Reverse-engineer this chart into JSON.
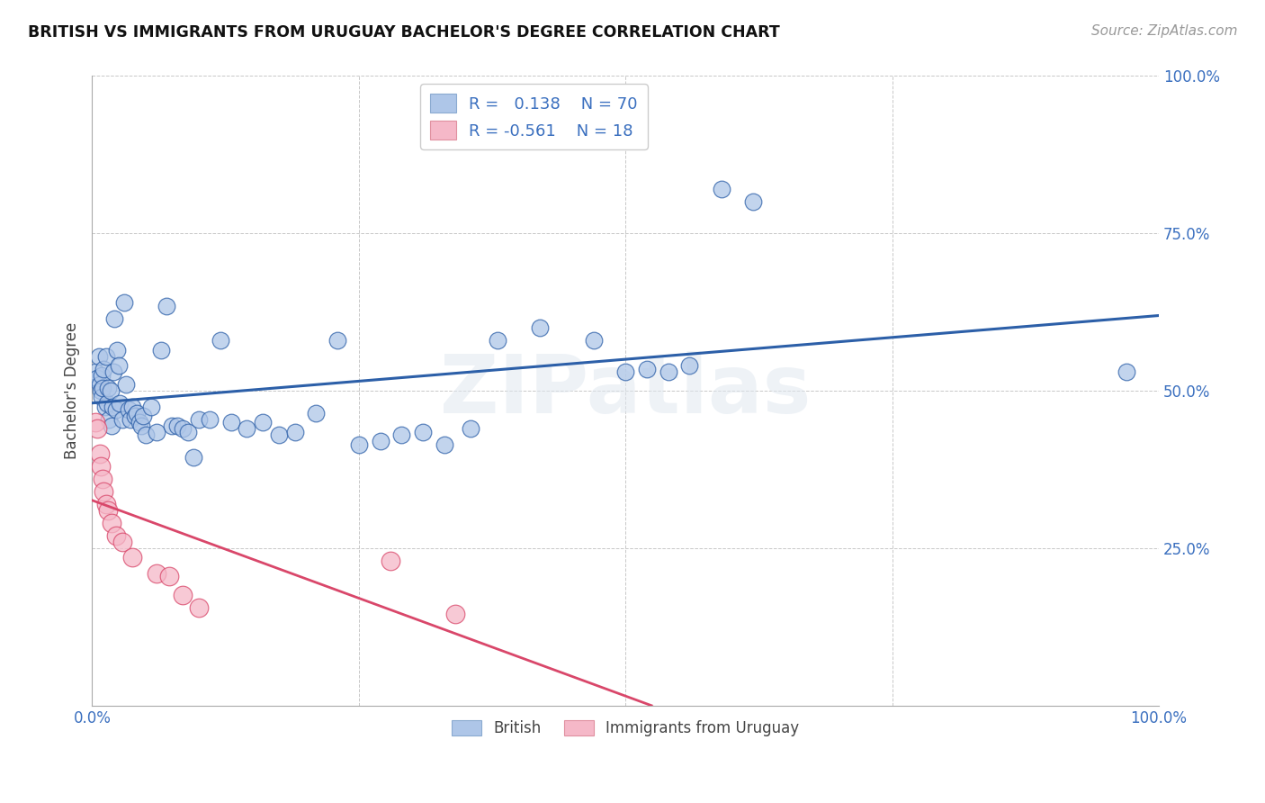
{
  "title": "BRITISH VS IMMIGRANTS FROM URUGUAY BACHELOR'S DEGREE CORRELATION CHART",
  "source": "Source: ZipAtlas.com",
  "ylabel": "Bachelor's Degree",
  "blue_R": 0.138,
  "blue_N": 70,
  "pink_R": -0.561,
  "pink_N": 18,
  "blue_color": "#aec6e8",
  "pink_color": "#f5b8c8",
  "blue_line_color": "#2c5fa8",
  "pink_line_color": "#d9476a",
  "background_color": "#ffffff",
  "grid_color": "#c8c8c8",
  "blue_x": [
    0.003,
    0.005,
    0.006,
    0.007,
    0.008,
    0.009,
    0.009,
    0.01,
    0.011,
    0.012,
    0.013,
    0.014,
    0.015,
    0.016,
    0.017,
    0.018,
    0.019,
    0.02,
    0.021,
    0.022,
    0.023,
    0.025,
    0.026,
    0.028,
    0.03,
    0.032,
    0.034,
    0.036,
    0.038,
    0.04,
    0.042,
    0.044,
    0.046,
    0.048,
    0.05,
    0.055,
    0.06,
    0.065,
    0.07,
    0.075,
    0.08,
    0.085,
    0.09,
    0.095,
    0.1,
    0.11,
    0.12,
    0.13,
    0.145,
    0.16,
    0.175,
    0.19,
    0.21,
    0.23,
    0.25,
    0.27,
    0.29,
    0.31,
    0.33,
    0.355,
    0.38,
    0.42,
    0.47,
    0.5,
    0.52,
    0.54,
    0.56,
    0.59,
    0.62,
    0.97
  ],
  "blue_y": [
    0.53,
    0.52,
    0.555,
    0.51,
    0.5,
    0.525,
    0.49,
    0.505,
    0.535,
    0.475,
    0.555,
    0.48,
    0.505,
    0.455,
    0.5,
    0.445,
    0.475,
    0.53,
    0.615,
    0.47,
    0.565,
    0.54,
    0.48,
    0.455,
    0.64,
    0.51,
    0.47,
    0.455,
    0.475,
    0.46,
    0.465,
    0.45,
    0.445,
    0.46,
    0.43,
    0.475,
    0.435,
    0.565,
    0.635,
    0.445,
    0.445,
    0.44,
    0.435,
    0.395,
    0.455,
    0.455,
    0.58,
    0.45,
    0.44,
    0.45,
    0.43,
    0.435,
    0.465,
    0.58,
    0.415,
    0.42,
    0.43,
    0.435,
    0.415,
    0.44,
    0.58,
    0.6,
    0.58,
    0.53,
    0.535,
    0.53,
    0.54,
    0.82,
    0.8,
    0.53
  ],
  "pink_x": [
    0.003,
    0.005,
    0.007,
    0.008,
    0.01,
    0.011,
    0.013,
    0.015,
    0.018,
    0.022,
    0.028,
    0.038,
    0.06,
    0.072,
    0.085,
    0.1,
    0.28,
    0.34
  ],
  "pink_y": [
    0.45,
    0.44,
    0.4,
    0.38,
    0.36,
    0.34,
    0.32,
    0.31,
    0.29,
    0.27,
    0.26,
    0.235,
    0.21,
    0.205,
    0.175,
    0.155,
    0.23,
    0.145
  ],
  "legend_text_color": "#3a6fbf",
  "tick_color": "#3a6fbf"
}
